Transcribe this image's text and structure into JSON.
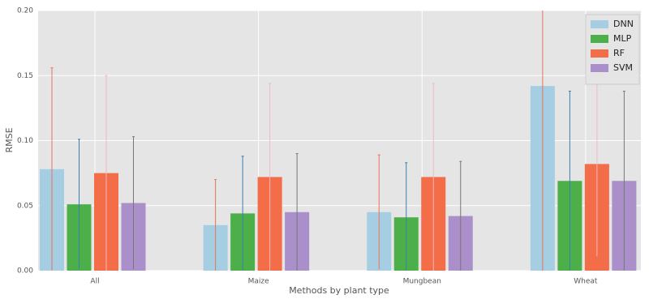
{
  "chart_data": {
    "type": "bar",
    "xlabel": "Methods by plant type",
    "ylabel": "RMSE",
    "categories": [
      "All",
      "Maize",
      "Mungbean",
      "Wheat"
    ],
    "series": [
      {
        "name": "DNN",
        "color": "#a6cee3",
        "error_color": "#e8725a",
        "values": [
          0.078,
          0.035,
          0.045,
          0.142
        ],
        "errors": [
          0.078,
          0.035,
          0.044,
          0.142
        ]
      },
      {
        "name": "MLP",
        "color": "#4daf4a",
        "error_color": "#3a7fb0",
        "values": [
          0.051,
          0.044,
          0.041,
          0.069
        ],
        "errors": [
          0.05,
          0.044,
          0.042,
          0.069
        ]
      },
      {
        "name": "RF",
        "color": "#f26d48",
        "error_color": "#f4b8c0",
        "values": [
          0.075,
          0.072,
          0.072,
          0.082
        ],
        "errors": [
          0.075,
          0.072,
          0.072,
          0.071
        ]
      },
      {
        "name": "SVM",
        "color": "#ab8fca",
        "error_color": "#777777",
        "values": [
          0.052,
          0.045,
          0.042,
          0.069
        ],
        "errors": [
          0.051,
          0.045,
          0.042,
          0.069
        ]
      }
    ],
    "ylim": [
      0,
      0.2
    ],
    "yticks": [
      {
        "value": 0,
        "label": "0.00"
      },
      {
        "value": 0.05,
        "label": "0.05"
      },
      {
        "value": 0.1,
        "label": "0.10"
      },
      {
        "value": 0.15,
        "label": "0.15"
      },
      {
        "value": 0.2,
        "label": "0.20"
      }
    ],
    "grid": true,
    "legend": "upper right"
  }
}
